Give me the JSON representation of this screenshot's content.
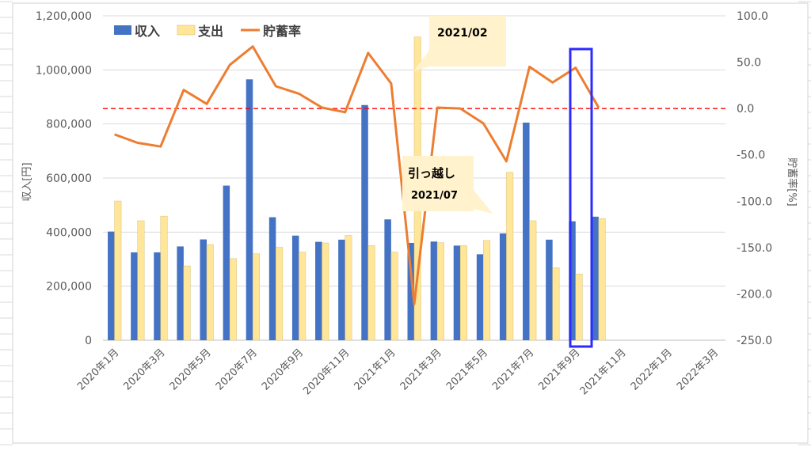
{
  "chart_data": {
    "type": "bar+line",
    "categories": [
      "2020年1月",
      "2020年2月",
      "2020年3月",
      "2020年4月",
      "2020年5月",
      "2020年6月",
      "2020年7月",
      "2020年8月",
      "2020年9月",
      "2020年10月",
      "2020年11月",
      "2020年12月",
      "2021年1月",
      "2021年2月",
      "2021年3月",
      "2021年4月",
      "2021年5月",
      "2021年6月",
      "2021年7月",
      "2021年8月",
      "2021年9月",
      "2021年10月",
      "2021年11月",
      "2021年12月",
      "2022年1月",
      "2022年2月",
      "2022年3月"
    ],
    "x_tick_labels": [
      "2020年1月",
      "2020年3月",
      "2020年5月",
      "2020年7月",
      "2020年9月",
      "2020年11月",
      "2021年1月",
      "2021年3月",
      "2021年5月",
      "2021年7月",
      "2021年9月",
      "2021年11月",
      "2022年1月",
      "2022年3月"
    ],
    "series": [
      {
        "name": "収入",
        "type": "bar",
        "axis": "left",
        "color": "#4472C4",
        "values": [
          402000,
          325000,
          325000,
          347000,
          373000,
          572000,
          965000,
          455000,
          387000,
          364000,
          372000,
          870000,
          447000,
          360000,
          365000,
          350000,
          318000,
          395000,
          805000,
          372000,
          440000,
          457000,
          null,
          null,
          null,
          null,
          null
        ]
      },
      {
        "name": "支出",
        "type": "bar",
        "axis": "left",
        "color": "#FFE699",
        "values": [
          515000,
          442000,
          459000,
          275000,
          354000,
          302000,
          320000,
          344000,
          326000,
          360000,
          388000,
          350000,
          326000,
          1122000,
          361000,
          350000,
          369000,
          621000,
          442000,
          268000,
          245000,
          450000,
          null,
          null,
          null,
          null,
          null
        ]
      },
      {
        "name": "貯蓄率",
        "type": "line",
        "axis": "right",
        "color": "#ED7D31",
        "values": [
          -28,
          -37,
          -41,
          20,
          5,
          47,
          67,
          24,
          16,
          1,
          -4,
          60,
          27,
          -211,
          1,
          0,
          -16,
          -57,
          45,
          28,
          44,
          1,
          null,
          null,
          null,
          null,
          null
        ]
      }
    ],
    "reference_line": {
      "axis": "right",
      "value": 0,
      "color": "#FF0000",
      "style": "dashed"
    },
    "left_axis": {
      "label": "収入[円]",
      "ylim": [
        0,
        1200000
      ],
      "ticks": [
        "0",
        "200,000",
        "400,000",
        "600,000",
        "800,000",
        "1,000,000",
        "1,200,000"
      ]
    },
    "right_axis": {
      "label": "貯蓄率[%]",
      "ylim": [
        -250,
        100
      ],
      "ticks": [
        "-250.0",
        "-200.0",
        "-150.0",
        "-100.0",
        "-50.0",
        "0.0",
        "50.0",
        "100.0"
      ]
    },
    "legend": {
      "placement": "top-left",
      "entries": [
        "収入",
        "支出",
        "貯蓄率"
      ]
    },
    "grid": true,
    "annotations": [
      {
        "text": "2021/02",
        "category": "2021年2月"
      },
      {
        "text": "引っ越し",
        "text2": "2021/07",
        "category": "2021年7月"
      }
    ],
    "highlight": {
      "category": "2021年10月",
      "color": "#2B2BFF"
    }
  }
}
